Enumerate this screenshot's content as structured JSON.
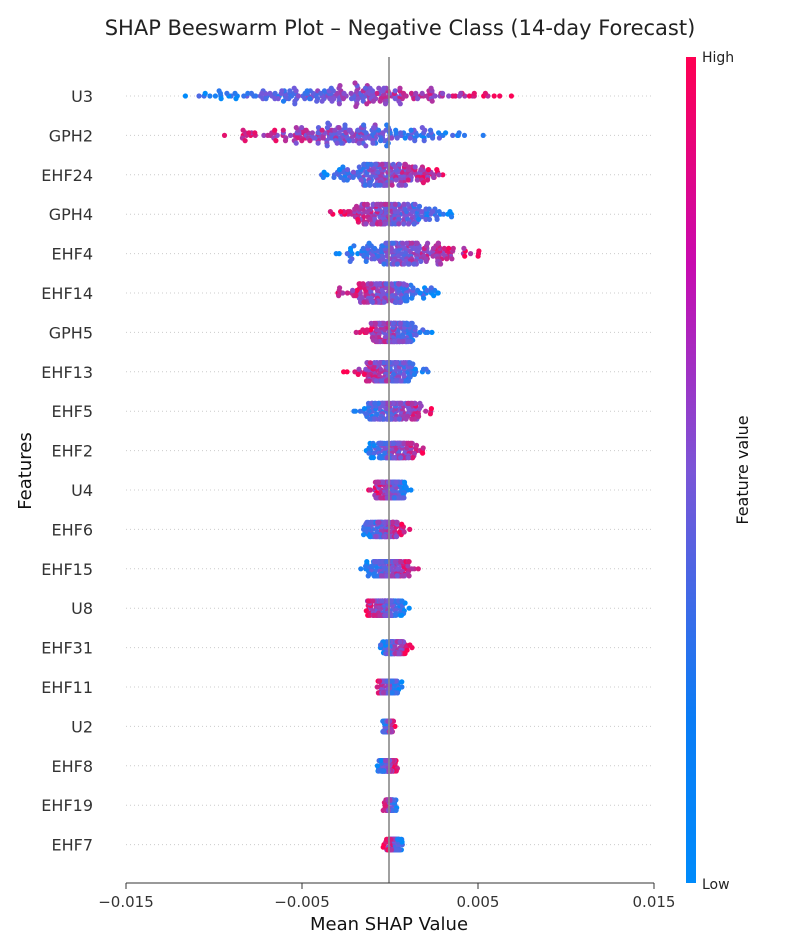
{
  "chart_data": {
    "type": "scatter",
    "subtype": "beeswarm",
    "title": "SHAP Beeswarm Plot – Negative Class (14-day Forecast)",
    "xlabel": "Mean SHAP Value",
    "ylabel": "Features",
    "xlim": [
      -0.015,
      0.015
    ],
    "xticks": [
      -0.015,
      -0.005,
      0.005,
      0.015
    ],
    "xtick_labels": [
      "−0.015",
      "−0.005",
      "0.005",
      "0.015"
    ],
    "grid": "horizontal dotted",
    "colorbar": {
      "label": "Feature value",
      "high_label": "High",
      "low_label": "Low",
      "low_color": "#008bfb",
      "high_color": "#ff0052"
    },
    "features": [
      {
        "name": "U3",
        "min": -0.013,
        "max": 0.008,
        "left": "low",
        "spread": 1.0
      },
      {
        "name": "GPH2",
        "min": -0.0105,
        "max": 0.0057,
        "left": "high",
        "spread": 0.95
      },
      {
        "name": "EHF24",
        "min": -0.005,
        "max": 0.0043,
        "left": "low",
        "spread": 0.8
      },
      {
        "name": "GPH4",
        "min": -0.004,
        "max": 0.0042,
        "left": "high",
        "spread": 0.75
      },
      {
        "name": "EHF4",
        "min": -0.0038,
        "max": 0.0055,
        "left": "low",
        "spread": 0.8
      },
      {
        "name": "EHF14",
        "min": -0.0037,
        "max": 0.0032,
        "left": "high",
        "spread": 0.7
      },
      {
        "name": "GPH5",
        "min": -0.002,
        "max": 0.0025,
        "left": "high",
        "spread": 0.7
      },
      {
        "name": "EHF13",
        "min": -0.0027,
        "max": 0.0025,
        "left": "high",
        "spread": 0.7
      },
      {
        "name": "EHF5",
        "min": -0.0023,
        "max": 0.0028,
        "left": "low",
        "spread": 0.6
      },
      {
        "name": "EHF2",
        "min": -0.0017,
        "max": 0.0022,
        "left": "low",
        "spread": 0.55
      },
      {
        "name": "U4",
        "min": -0.0013,
        "max": 0.0013,
        "left": "high",
        "spread": 0.6
      },
      {
        "name": "EHF6",
        "min": -0.002,
        "max": 0.0013,
        "left": "low",
        "spread": 0.55
      },
      {
        "name": "EHF15",
        "min": -0.0018,
        "max": 0.0017,
        "left": "low",
        "spread": 0.55
      },
      {
        "name": "U8",
        "min": -0.0017,
        "max": 0.0011,
        "left": "high",
        "spread": 0.55
      },
      {
        "name": "EHF31",
        "min": -0.0007,
        "max": 0.0013,
        "left": "low",
        "spread": 0.45
      },
      {
        "name": "EHF11",
        "min": -0.001,
        "max": 0.0007,
        "left": "high",
        "spread": 0.45
      },
      {
        "name": "U2",
        "min": -0.0005,
        "max": 0.0003,
        "left": "low",
        "spread": 0.4
      },
      {
        "name": "EHF8",
        "min": -0.0008,
        "max": 0.0005,
        "left": "low",
        "spread": 0.4
      },
      {
        "name": "EHF19",
        "min": -0.0004,
        "max": 0.0004,
        "left": "high",
        "spread": 0.4
      },
      {
        "name": "EHF7",
        "min": -0.0004,
        "max": 0.0008,
        "left": "high",
        "spread": 0.4
      }
    ]
  }
}
